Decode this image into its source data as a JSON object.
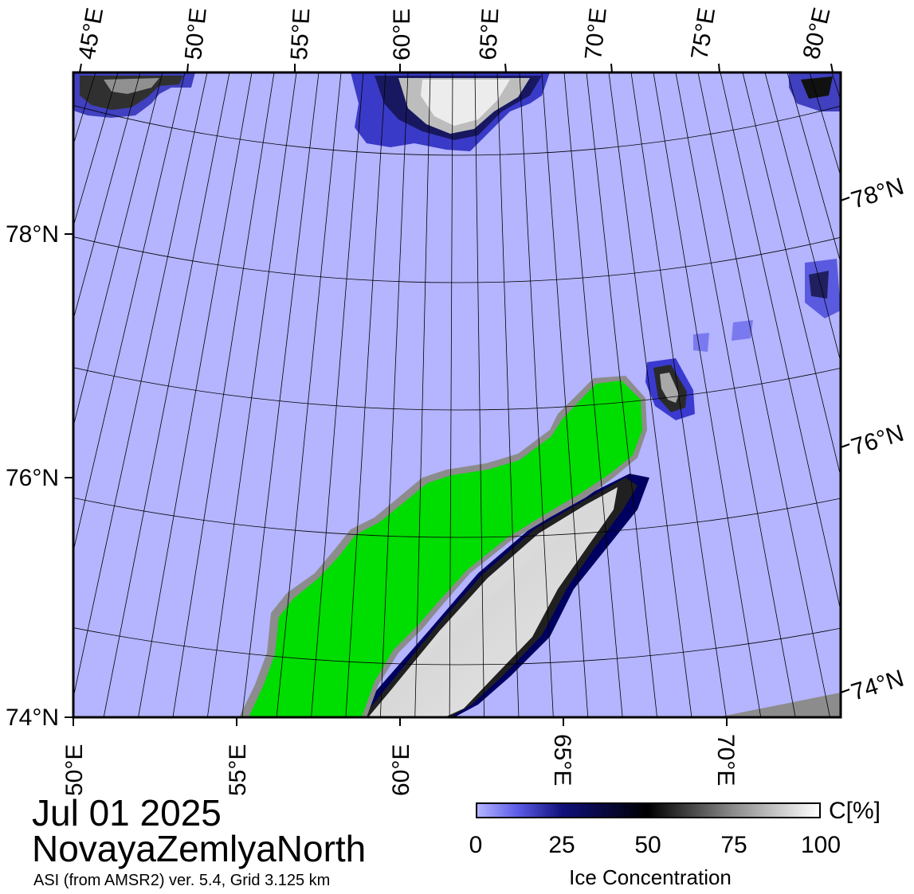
{
  "title": {
    "date": "Jul 01 2025",
    "region": "NovayaZemlyaNorth",
    "subtitle": "ASI (from AMSR2) ver. 5.4,  Grid 3.125 km"
  },
  "map": {
    "top_lon_labels": [
      "45°E",
      "50°E",
      "55°E",
      "60°E",
      "65°E",
      "70°E",
      "75°E",
      "80°E"
    ],
    "bottom_lon_labels": [
      "50°E",
      "55°E",
      "60°E",
      "65°E",
      "70°E"
    ],
    "left_lat_labels": [
      "78°N",
      "76°N",
      "74°N"
    ],
    "right_lat_labels": [
      "78°N",
      "76°N",
      "74°N"
    ],
    "colors": {
      "open_water": "#b4b4ff",
      "land": "#00dd00",
      "land_mask_edge": "#8c8c8c",
      "graticule": "#000000"
    }
  },
  "colorbar": {
    "ticks": [
      "0",
      "25",
      "50",
      "75",
      "100"
    ],
    "tick_values": [
      0,
      25,
      50,
      75,
      100
    ],
    "unit": "C[%]",
    "title": "Ice Concentration",
    "stops": [
      {
        "value": 0,
        "color": "#b4b4ff"
      },
      {
        "value": 12,
        "color": "#5a5ae6"
      },
      {
        "value": 25,
        "color": "#10107a"
      },
      {
        "value": 50,
        "color": "#000000"
      },
      {
        "value": 75,
        "color": "#8c8c8c"
      },
      {
        "value": 100,
        "color": "#ffffff"
      }
    ]
  }
}
